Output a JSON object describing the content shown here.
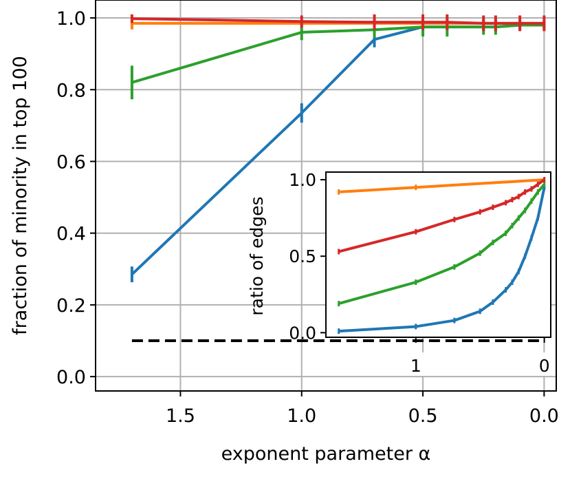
{
  "chart_data": [
    {
      "type": "line",
      "title": "",
      "xlabel": "exponent parameter α",
      "ylabel": "fraction of minority in top 100",
      "xlim": [
        1.85,
        -0.05
      ],
      "ylim": [
        -0.04,
        1.05
      ],
      "x_reversed": true,
      "grid": true,
      "x_ticks": [
        1.5,
        1.0,
        0.5,
        0.0
      ],
      "x_tick_labels": [
        "1.5",
        "1.0",
        "0.5",
        "0.0"
      ],
      "y_ticks": [
        0.0,
        0.2,
        0.4,
        0.6,
        0.8,
        1.0
      ],
      "y_tick_labels": [
        "0.0",
        "0.2",
        "0.4",
        "0.6",
        "0.8",
        "1.0"
      ],
      "series": [
        {
          "color": "#1f77b4",
          "x": [
            1.7,
            1.0,
            0.7,
            0.5,
            0.25,
            0.2,
            0.1,
            0.0
          ],
          "y": [
            0.285,
            0.735,
            0.94,
            0.975,
            0.975,
            0.975,
            0.98,
            0.98
          ],
          "err": [
            0.02,
            0.025,
            0.02,
            0.01,
            0.01,
            0.01,
            0.01,
            0.01
          ]
        },
        {
          "color": "#ff7f0e",
          "x": [
            1.7,
            1.0,
            0.7,
            0.5,
            0.4,
            0.25,
            0.2,
            0.1,
            0.0
          ],
          "y": [
            0.985,
            0.985,
            0.985,
            0.985,
            0.985,
            0.985,
            0.985,
            0.985,
            0.985
          ],
          "err": [
            0.015,
            0.005,
            0.005,
            0.005,
            0.005,
            0.005,
            0.005,
            0.005,
            0.005
          ]
        },
        {
          "color": "#2ca02c",
          "x": [
            1.7,
            1.0,
            0.7,
            0.5,
            0.4,
            0.25,
            0.2,
            0.1,
            0.0
          ],
          "y": [
            0.82,
            0.96,
            0.967,
            0.975,
            0.975,
            0.975,
            0.975,
            0.98,
            0.98
          ],
          "err": [
            0.045,
            0.02,
            0.02,
            0.025,
            0.025,
            0.02,
            0.02,
            0.01,
            0.01
          ]
        },
        {
          "color": "#d62728",
          "x": [
            1.7,
            1.0,
            0.7,
            0.5,
            0.4,
            0.25,
            0.2,
            0.1,
            0.0
          ],
          "y": [
            0.998,
            0.99,
            0.988,
            0.988,
            0.988,
            0.985,
            0.985,
            0.985,
            0.985
          ],
          "err": [
            0.01,
            0.015,
            0.02,
            0.02,
            0.02,
            0.02,
            0.02,
            0.02,
            0.02
          ]
        }
      ],
      "reference_line": {
        "color": "#000000",
        "style": "dashed",
        "x": [
          1.7,
          0.0
        ],
        "y": [
          0.1,
          0.1
        ]
      }
    },
    {
      "type": "line",
      "title": "",
      "xlabel": "",
      "ylabel": "ratio of edges",
      "xlim": [
        1.7,
        -0.05
      ],
      "ylim": [
        -0.03,
        1.05
      ],
      "x_reversed": true,
      "grid": false,
      "x_ticks": [
        1.0,
        0.0
      ],
      "x_tick_labels": [
        "1",
        "0"
      ],
      "y_ticks": [
        0.0,
        0.5,
        1.0
      ],
      "y_tick_labels": [
        "0.0",
        "0.5",
        "1.0"
      ],
      "series": [
        {
          "color": "#1f77b4",
          "x": [
            1.6,
            1.0,
            0.7,
            0.5,
            0.4,
            0.3,
            0.25,
            0.2,
            0.15,
            0.1,
            0.05,
            0.0
          ],
          "y": [
            0.01,
            0.04,
            0.08,
            0.14,
            0.2,
            0.28,
            0.33,
            0.4,
            0.5,
            0.62,
            0.75,
            0.95
          ]
        },
        {
          "color": "#ff7f0e",
          "x": [
            1.6,
            1.0,
            0.0
          ],
          "y": [
            0.92,
            0.95,
            1.0
          ]
        },
        {
          "color": "#2ca02c",
          "x": [
            1.6,
            1.0,
            0.7,
            0.5,
            0.4,
            0.3,
            0.25,
            0.2,
            0.15,
            0.1,
            0.05,
            0.0
          ],
          "y": [
            0.19,
            0.33,
            0.43,
            0.52,
            0.59,
            0.65,
            0.7,
            0.75,
            0.8,
            0.86,
            0.92,
            0.97
          ]
        },
        {
          "color": "#d62728",
          "x": [
            1.6,
            1.0,
            0.7,
            0.5,
            0.4,
            0.3,
            0.25,
            0.2,
            0.15,
            0.1,
            0.05,
            0.0
          ],
          "y": [
            0.53,
            0.66,
            0.74,
            0.79,
            0.82,
            0.85,
            0.87,
            0.89,
            0.92,
            0.94,
            0.97,
            1.0
          ]
        }
      ]
    }
  ]
}
